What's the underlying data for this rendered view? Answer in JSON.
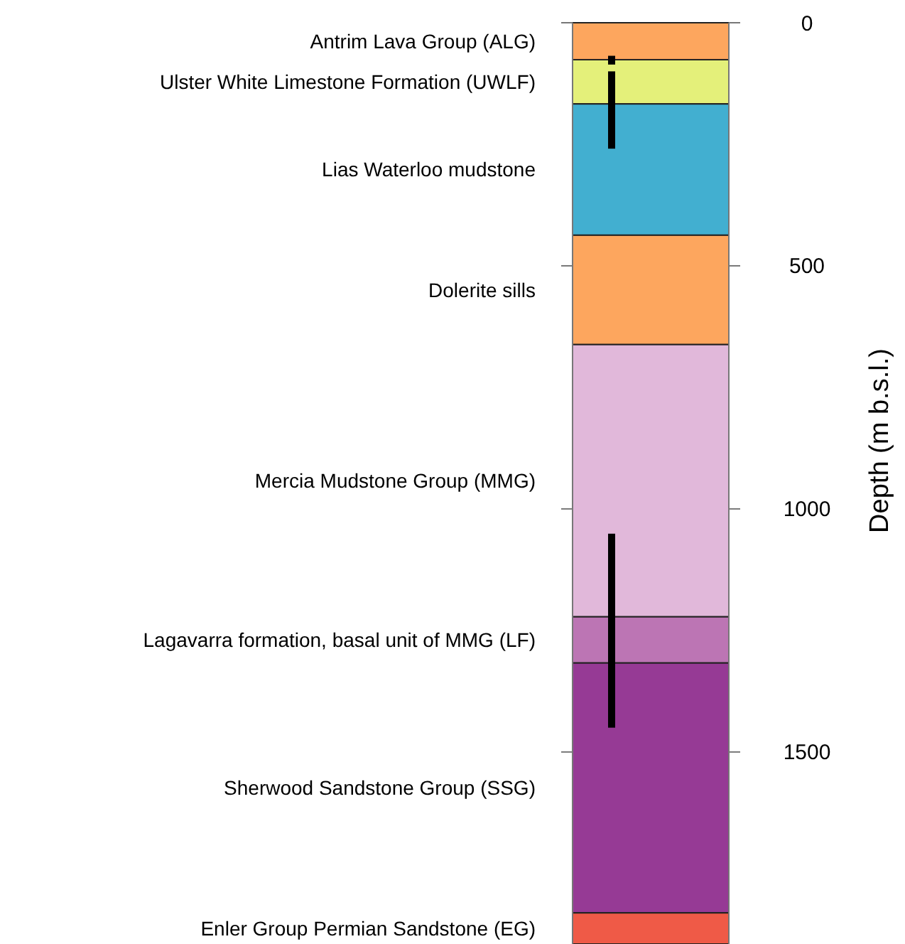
{
  "chart_data": {
    "type": "bar",
    "stacked": true,
    "ylabel": "Depth (m b.s.l.)",
    "categories": [
      null
    ],
    "ylim": [
      1895,
      0
    ],
    "yticks": [
      0,
      500,
      1000,
      1500
    ],
    "bands": [
      {
        "axis": "y",
        "from": 68,
        "to": 86,
        "color": "#000000"
      },
      {
        "axis": "y",
        "from": 100,
        "to": 259,
        "color": "#000000"
      },
      {
        "axis": "y",
        "from": 1051,
        "to": 1450,
        "color": "#000000"
      }
    ],
    "series": [
      {
        "name": "Antrim Lava Group (ALG)",
        "color": "#fda65e",
        "values": [
          76
        ]
      },
      {
        "name": "Ulster White Limestone Formation (UWLF)",
        "color": "#e4f07a",
        "values": [
          91
        ]
      },
      {
        "name": "Lias Waterloo mudstone",
        "color": "#42afd0",
        "values": [
          270
        ]
      },
      {
        "name": "Dolerite sills",
        "color": "#fda65e",
        "values": [
          225
        ]
      },
      {
        "name": "Mercia Mudstone Group (MMG)",
        "color": "#e1b8da",
        "values": [
          560
        ]
      },
      {
        "name": "Lagavarra formation, basal unit of MMG (LF)",
        "color": "#bc75b4",
        "values": [
          95
        ]
      },
      {
        "name": "Sherwood Sandstone Group (SSG)",
        "color": "#963a95",
        "values": [
          514
        ]
      },
      {
        "name": "Enler Group Permian Sandstone (EG)",
        "color": "#ef5a47",
        "values": [
          64
        ]
      }
    ]
  }
}
